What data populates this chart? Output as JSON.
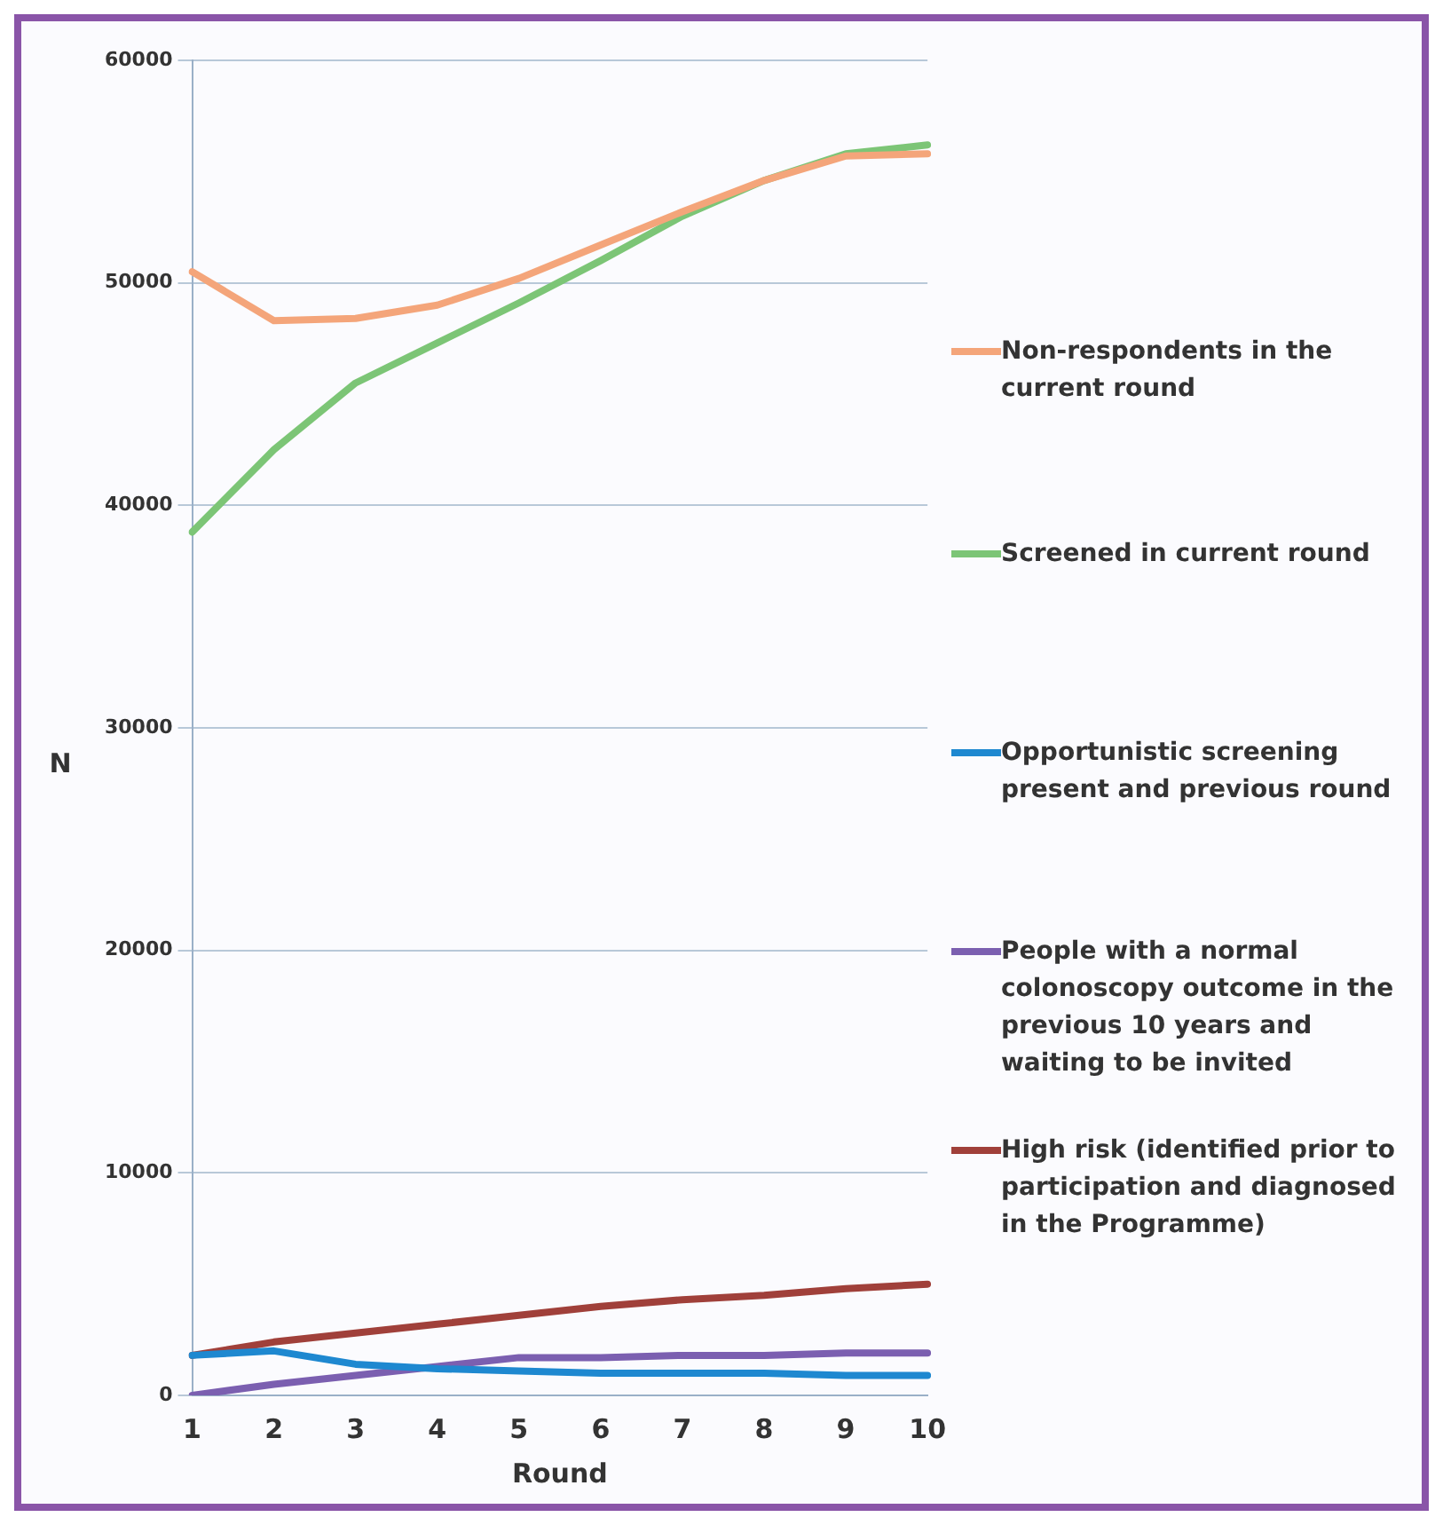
{
  "chart_data": {
    "type": "line",
    "xlabel": "Round",
    "ylabel": "N",
    "categories": [
      "1",
      "2",
      "3",
      "4",
      "5",
      "6",
      "7",
      "8",
      "9",
      "10"
    ],
    "series": [
      {
        "name": "Non-respondents in the current round",
        "color": "#f4a57a",
        "values": [
          50500,
          48300,
          48400,
          49000,
          50200,
          51700,
          53200,
          54600,
          55700,
          55800
        ]
      },
      {
        "name": "Screened in current round",
        "color": "#7cc576",
        "values": [
          38800,
          42500,
          45500,
          47300,
          49100,
          51000,
          53000,
          54600,
          55800,
          56200
        ]
      },
      {
        "name": "Opportunistic screening present and previous round",
        "color": "#1e88d0",
        "values": [
          1800,
          2000,
          1400,
          1200,
          1100,
          1000,
          1000,
          1000,
          900,
          900
        ]
      },
      {
        "name": "People with a normal colonoscopy outcome in the previous 10 years and waiting to be invited",
        "color": "#7b5fb0",
        "values": [
          0,
          500,
          900,
          1300,
          1700,
          1700,
          1800,
          1800,
          1900,
          1900
        ]
      },
      {
        "name": "High risk (identified prior to participation and diagnosed in the Programme)",
        "color": "#a0403a",
        "values": [
          1800,
          2400,
          2800,
          3200,
          3600,
          4000,
          4300,
          4500,
          4800,
          5000
        ]
      }
    ],
    "ylim": [
      0,
      60000
    ],
    "yticks": [
      0,
      10000,
      20000,
      30000,
      40000,
      50000,
      60000
    ],
    "grid": "y",
    "legend": "right",
    "marker": "none",
    "line_style": "solid"
  }
}
